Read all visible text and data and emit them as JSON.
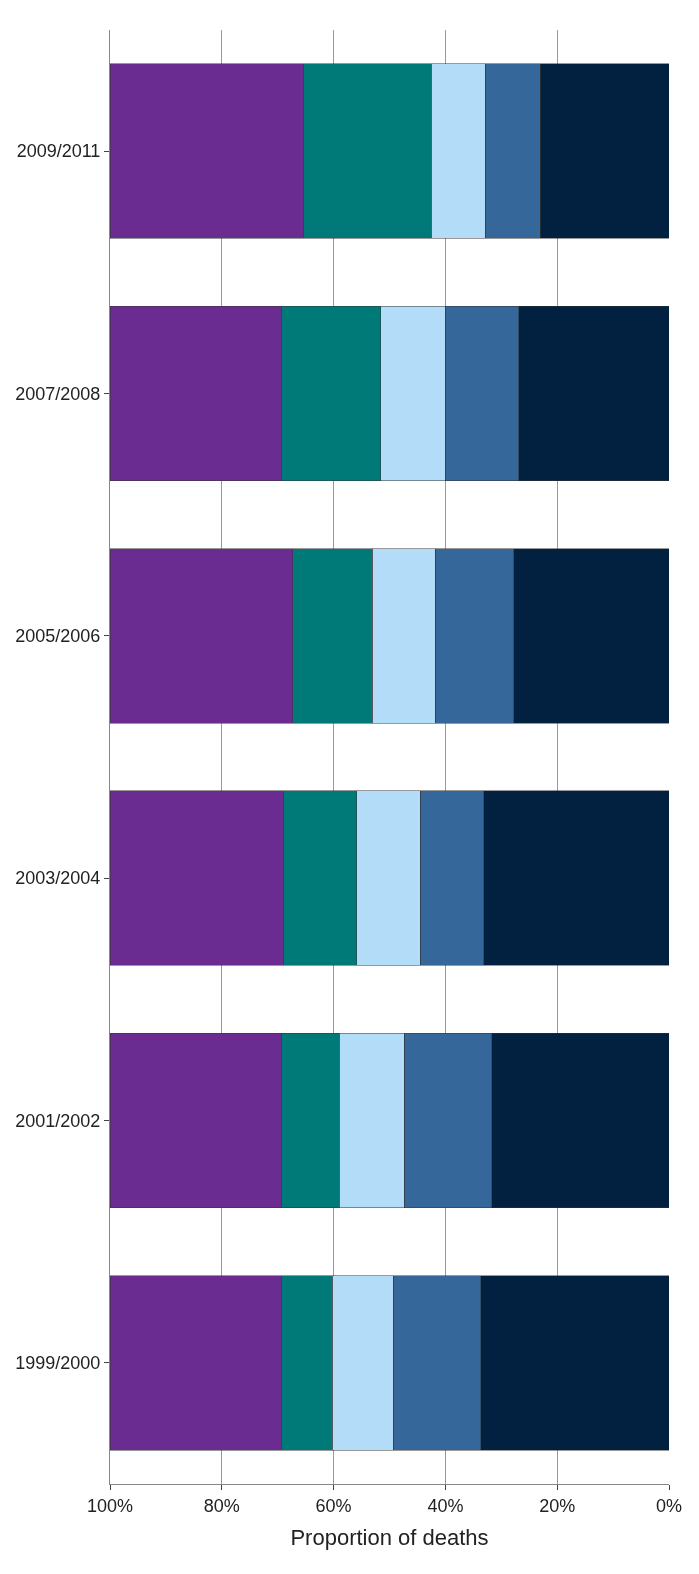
{
  "chart_data": {
    "type": "bar",
    "orientation": "horizontal",
    "stacked": true,
    "xlabel": "Proportion of deaths",
    "categories": [
      "2009/2011",
      "2007/2008",
      "2005/2006",
      "2003/2004",
      "2001/2002",
      "1999/2000"
    ],
    "series": [
      {
        "color": "#02203f",
        "values": [
          23.0,
          26.9,
          27.8,
          33.1,
          31.7,
          33.7
        ]
      },
      {
        "color": "#35679a",
        "values": [
          9.9,
          13.1,
          14.0,
          11.4,
          15.7,
          15.6
        ]
      },
      {
        "color": "#b3dcf8",
        "values": [
          9.6,
          11.6,
          11.3,
          11.4,
          11.6,
          10.9
        ]
      },
      {
        "color": "#007a78",
        "values": [
          22.8,
          17.7,
          14.2,
          13.0,
          10.3,
          9.1
        ]
      },
      {
        "color": "#6a2c91",
        "values": [
          34.7,
          30.7,
          32.7,
          31.1,
          30.7,
          30.7
        ]
      }
    ],
    "xlim": [
      100,
      0
    ],
    "xticks": [
      {
        "value": 100,
        "label": "100%"
      },
      {
        "value": 80,
        "label": "80%"
      },
      {
        "value": 60,
        "label": "60%"
      },
      {
        "value": 40,
        "label": "40%"
      },
      {
        "value": 20,
        "label": "20%"
      },
      {
        "value": 0,
        "label": "0%"
      }
    ],
    "grid": "x"
  }
}
